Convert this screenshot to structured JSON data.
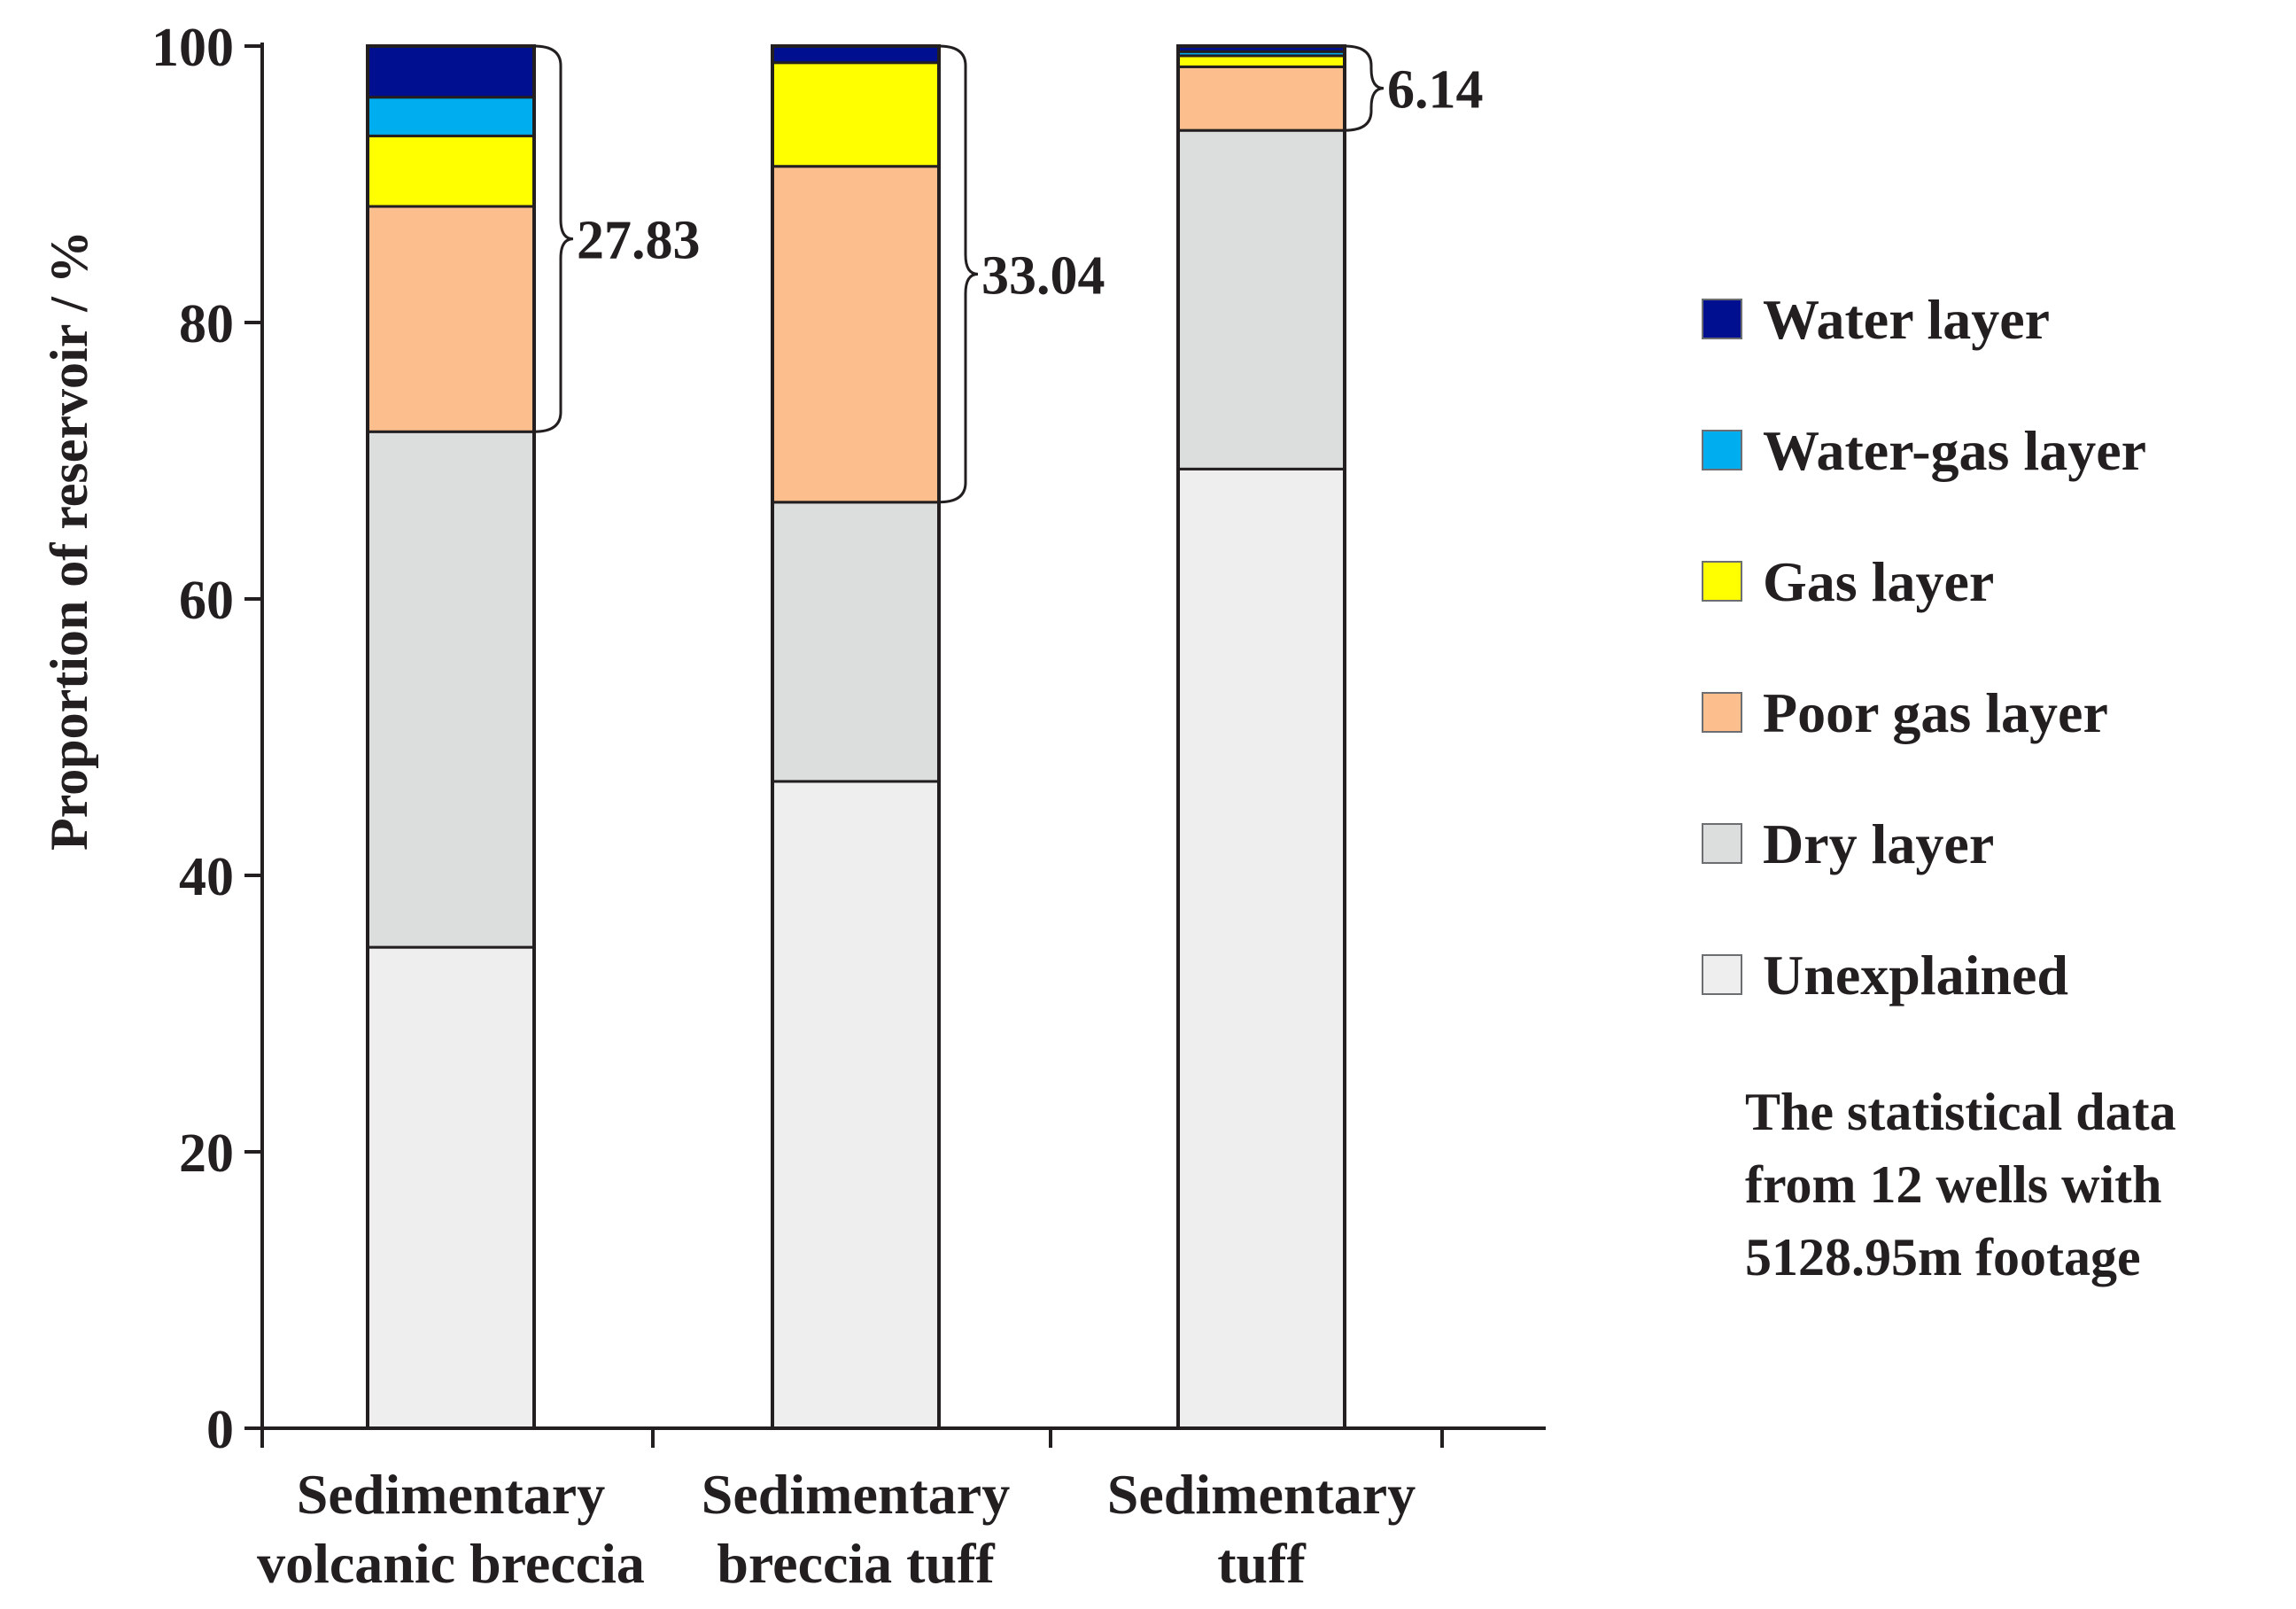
{
  "chart_data": {
    "type": "stacked-bar",
    "title": "",
    "xlabel": "",
    "ylabel": "Proportion of reservoir / %",
    "ylim": [
      0,
      100
    ],
    "yticks": [
      "0",
      "20",
      "40",
      "60",
      "80",
      "100"
    ],
    "grid": false,
    "legend_position": "right",
    "categories": [
      [
        "Sedimentary",
        "volcanic breccia"
      ],
      [
        "Sedimentary",
        "breccia tuff"
      ],
      [
        "Sedimentary",
        "tuff"
      ]
    ],
    "series": [
      {
        "name": "Unexplained",
        "color": "#eeeeee",
        "values": [
          34.8,
          46.8,
          69.4
        ]
      },
      {
        "name": "Dry layer",
        "color": "#dcdddd",
        "values": [
          37.3,
          20.2,
          24.5
        ]
      },
      {
        "name": "Poor gas layer",
        "color": "#fbbe8c",
        "values": [
          16.3,
          24.3,
          4.6
        ]
      },
      {
        "name": "Gas layer",
        "color": "#ffff00",
        "values": [
          5.1,
          7.5,
          0.8
        ]
      },
      {
        "name": "Water-gas layer",
        "color": "#00aeef",
        "values": [
          2.8,
          0.0,
          0.3
        ]
      },
      {
        "name": "Water layer",
        "color": "#000f8f",
        "values": [
          3.7,
          1.2,
          0.4
        ]
      }
    ],
    "annotations": [
      {
        "label": "27.83",
        "category": 0,
        "from": 72.1,
        "to": 100
      },
      {
        "label": "33.04",
        "category": 1,
        "from": 67.0,
        "to": 100
      },
      {
        "label": "6.14",
        "category": 2,
        "from": 93.9,
        "to": 100
      }
    ],
    "note": [
      "The statistical data",
      "from 12 wells with",
      "5128.95m footage"
    ]
  }
}
